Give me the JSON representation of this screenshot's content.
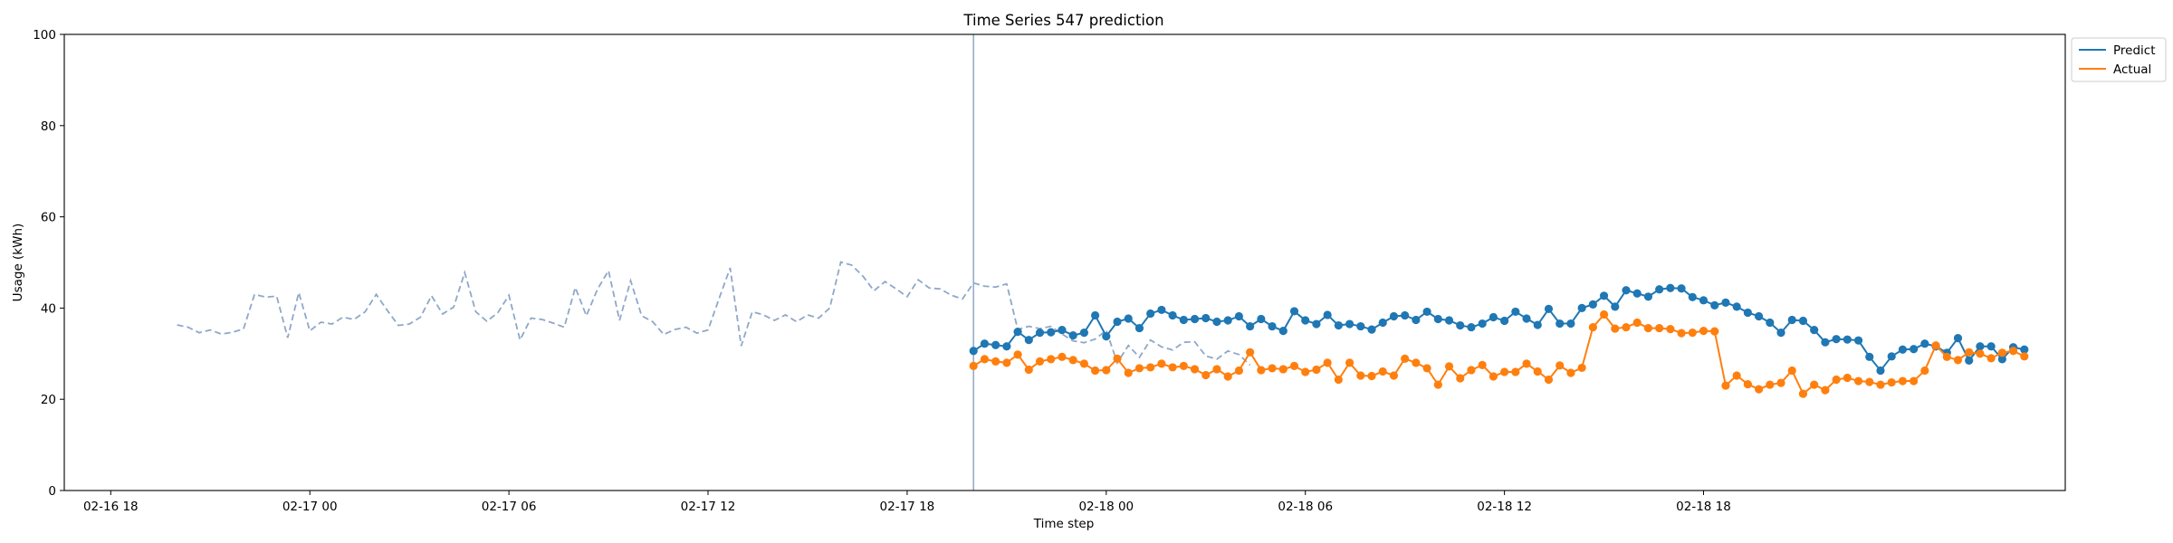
{
  "chart_data": {
    "type": "line",
    "title": "Time Series 547 prediction",
    "xlabel": "Time step",
    "ylabel": "Usage (kWh)",
    "ylim": [
      0,
      100
    ],
    "yticks": [
      0,
      20,
      40,
      60,
      80,
      100
    ],
    "xlim": [
      "2016-02-16 16:36",
      "2016-02-19 04:54"
    ],
    "xticks": [
      {
        "t": "2016-02-16 18:00",
        "label": "02-16 18"
      },
      {
        "t": "2016-02-17 00:00",
        "label": "02-17 00"
      },
      {
        "t": "2016-02-17 06:00",
        "label": "02-17 06"
      },
      {
        "t": "2016-02-17 12:00",
        "label": "02-17 12"
      },
      {
        "t": "2016-02-17 18:00",
        "label": "02-17 18"
      },
      {
        "t": "2016-02-18 00:00",
        "label": "02-18 00"
      },
      {
        "t": "2016-02-18 06:00",
        "label": "02-18 06"
      },
      {
        "t": "2016-02-18 12:00",
        "label": "02-18 12"
      },
      {
        "t": "2016-02-18 18:00",
        "label": "02-18 18"
      }
    ],
    "forecast_start": "2016-02-17 20:00",
    "grid": false,
    "legend_position": "upper-right-outside",
    "colors": {
      "predict": "#1f77b4",
      "actual": "#ff7f0e",
      "history": "#8fa8c8",
      "vline": "#8fa8c8"
    },
    "history": {
      "start": "2016-02-16 20:00",
      "interval_minutes": 20,
      "values": [
        36.3,
        35.8,
        34.6,
        35.2,
        34.3,
        34.7,
        35.4,
        43.0,
        42.4,
        42.6,
        33.5,
        43.4,
        35.0,
        36.9,
        36.5,
        38.0,
        37.5,
        39.2,
        43.0,
        39.5,
        36.2,
        36.5,
        38.0,
        42.7,
        38.7,
        40.2,
        47.8,
        39.2,
        37.1,
        39.0,
        42.8,
        33.0,
        37.8,
        37.5,
        36.7,
        35.8,
        44.5,
        38.3,
        44.1,
        48.2,
        37.3,
        46.0,
        38.3,
        37.0,
        34.2,
        35.3,
        35.8,
        34.5,
        35.2,
        42.1,
        48.8,
        31.7,
        39.2,
        38.5,
        37.3,
        38.5,
        37.0,
        38.5,
        37.8,
        40.0,
        50.1,
        49.4,
        47.0,
        43.8,
        45.8,
        44.2,
        42.5,
        46.2,
        44.4,
        44.2,
        42.8,
        42.0,
        45.5,
        44.8,
        44.6,
        45.3,
        35.3,
        36.0,
        35.5,
        36.0,
        34.3,
        32.8,
        32.4,
        33.2,
        35.1,
        28.0,
        31.8,
        29.2,
        33.0,
        31.5,
        30.8,
        32.5,
        32.6,
        29.5,
        28.8,
        30.6,
        29.8,
        27.5
      ]
    },
    "series": [
      {
        "name": "Predict",
        "start": "2016-02-17 20:00",
        "interval_minutes": 20,
        "values": [
          30.6,
          32.2,
          31.9,
          31.6,
          34.8,
          33.0,
          34.6,
          34.7,
          35.2,
          34.0,
          34.6,
          38.4,
          33.8,
          37.0,
          37.7,
          35.6,
          38.8,
          39.6,
          38.4,
          37.4,
          37.6,
          37.8,
          37.0,
          37.3,
          38.2,
          36.0,
          37.6,
          36.0,
          35.0,
          39.3,
          37.3,
          36.5,
          38.5,
          36.2,
          36.5,
          36.0,
          35.3,
          36.8,
          38.2,
          38.4,
          37.4,
          39.2,
          37.6,
          37.3,
          36.2,
          35.8,
          36.6,
          38.0,
          37.2,
          39.2,
          37.7,
          36.3,
          39.8,
          36.6,
          36.6,
          40.0,
          40.8,
          42.7,
          40.3,
          43.9,
          43.2,
          42.5,
          44.1,
          44.4,
          44.3,
          42.4,
          41.7,
          40.6,
          41.2,
          40.3,
          39.0,
          38.2,
          36.8,
          34.6,
          37.4,
          37.2,
          35.2,
          32.5,
          33.2,
          33.1,
          32.9,
          29.3,
          26.3,
          29.4,
          30.9,
          31.0,
          32.2,
          31.6,
          30.2,
          33.4,
          28.5,
          31.6,
          31.6,
          28.8,
          31.4,
          30.9
        ]
      },
      {
        "name": "Actual",
        "start": "2016-02-17 20:00",
        "interval_minutes": 20,
        "values": [
          27.3,
          28.8,
          28.3,
          28.0,
          29.8,
          26.5,
          28.3,
          28.8,
          29.3,
          28.6,
          27.8,
          26.3,
          26.4,
          28.9,
          25.8,
          26.8,
          27.0,
          27.8,
          27.0,
          27.3,
          26.6,
          25.3,
          26.6,
          25.0,
          26.3,
          30.3,
          26.4,
          26.8,
          26.6,
          27.3,
          26.0,
          26.5,
          28.0,
          24.3,
          28.0,
          25.2,
          25.1,
          26.1,
          25.2,
          28.9,
          28.0,
          26.8,
          23.2,
          27.2,
          24.6,
          26.4,
          27.5,
          25.0,
          26.0,
          26.0,
          27.8,
          26.1,
          24.3,
          27.4,
          25.8,
          26.9,
          35.8,
          38.6,
          35.5,
          35.8,
          36.8,
          35.6,
          35.6,
          35.4,
          34.5,
          34.6,
          35.0,
          34.9,
          23.0,
          25.2,
          23.3,
          22.2,
          23.2,
          23.6,
          26.3,
          21.2,
          23.2,
          22.0,
          24.3,
          24.7,
          24.0,
          23.8,
          23.2,
          23.7,
          24.0,
          24.0,
          26.3,
          31.8,
          29.3,
          28.6,
          30.3,
          30.0,
          29.0,
          30.2,
          30.6,
          29.4
        ]
      }
    ]
  }
}
